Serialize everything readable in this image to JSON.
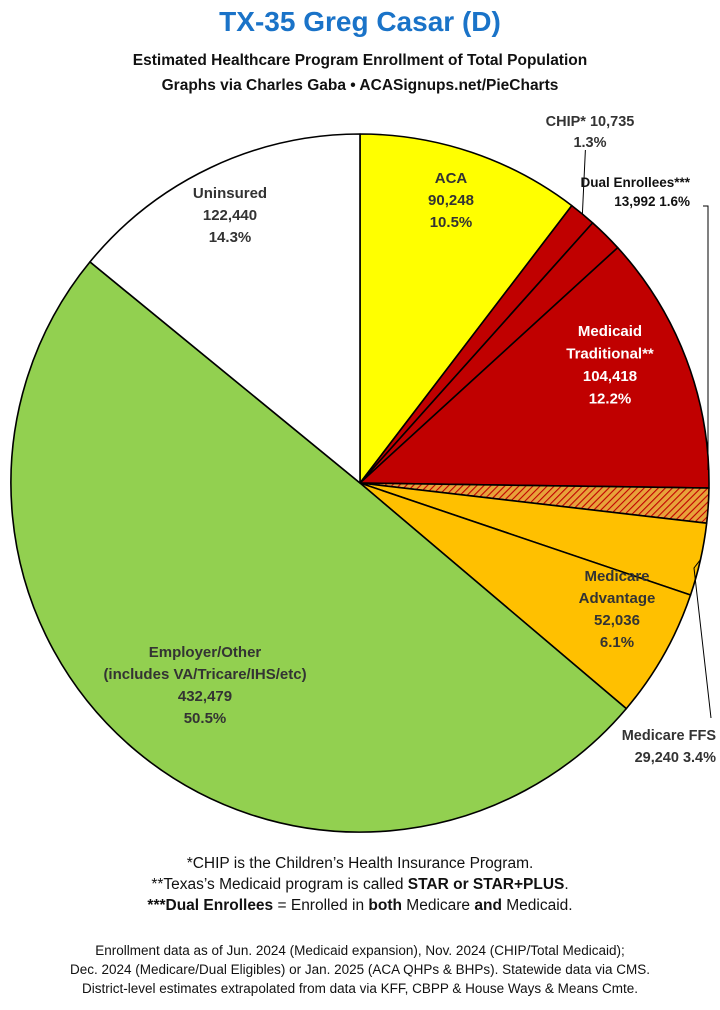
{
  "header": {
    "title": "TX-35 Greg Casar (D)",
    "subtitle_1": "Estimated Healthcare Program Enrollment of Total Population",
    "subtitle_2": "Graphs via Charles Gaba  •  ACASignups.net/PieCharts"
  },
  "chart_data": {
    "type": "pie",
    "title": "TX-35 Greg Casar (D)",
    "start_angle_deg": 0,
    "direction": "clockwise",
    "slices": [
      {
        "label": "ACA",
        "value": 90248,
        "percent": "10.5%",
        "value_text": "90,248",
        "color": "#ffff00",
        "label_pos": "inside"
      },
      {
        "label": "CHIP*",
        "value": 10735,
        "percent": "1.3%",
        "value_text": "10,735",
        "color": "#c00000",
        "label_pos": "outside"
      },
      {
        "label": "Dual Enrollees***",
        "value": 13992,
        "percent": "1.6%",
        "value_text": "13,992",
        "color": "#c00000",
        "label_pos": "outside"
      },
      {
        "label": "Medicaid Traditional**",
        "value": 104418,
        "percent": "12.2%",
        "value_text": "104,418",
        "color": "#c00000",
        "label_pos": "inside"
      },
      {
        "label": "Dual Enrollees (hatched)",
        "value": 13992,
        "percent": "1.6%",
        "value_text": "",
        "color": "#e8a23a",
        "hatch": true,
        "label_pos": "none"
      },
      {
        "label": "Medicare FFS",
        "value": 29240,
        "percent": "3.4%",
        "value_text": "29,240",
        "color": "#ffc000",
        "label_pos": "outside"
      },
      {
        "label": "Medicare Advantage",
        "value": 52036,
        "percent": "6.1%",
        "value_text": "52,036",
        "color": "#ffc000",
        "label_pos": "inside"
      },
      {
        "label": "Employer/Other (includes VA/Tricare/IHS/etc)",
        "value": 432479,
        "percent": "50.5%",
        "value_text": "432,479",
        "color": "#92d050",
        "label_pos": "inside"
      },
      {
        "label": "Uninsured",
        "value": 122440,
        "percent": "14.3%",
        "value_text": "122,440",
        "color": "#ffffff",
        "label_pos": "inside"
      }
    ],
    "labels": {
      "aca": [
        "ACA",
        "90,248",
        "10.5%"
      ],
      "chip": [
        "CHIP* 10,735",
        "1.3%"
      ],
      "dual": [
        "Dual Enrollees***",
        "13,992 1.6%"
      ],
      "medicaid": [
        "Medicaid",
        "Traditional**",
        "104,418",
        "12.2%"
      ],
      "medicare_adv": [
        "Medicare",
        "Advantage",
        "52,036",
        "6.1%"
      ],
      "medicare_ffs": [
        "Medicare FFS",
        "29,240 3.4%"
      ],
      "employer": [
        "Employer/Other",
        "(includes VA/Tricare/IHS/etc)",
        "432,479",
        "50.5%"
      ],
      "uninsured": [
        "Uninsured",
        "122,440",
        "14.3%"
      ]
    }
  },
  "footnotes": {
    "chip_a": "*CHIP is the Children’s Health Insurance Program.",
    "medicaid_a": "**Texas’s Medicaid program is called ",
    "medicaid_b": "STAR or STAR+PLUS",
    "medicaid_c": ".",
    "dual_a": "***Dual Enrollees",
    "dual_b": " = Enrolled in ",
    "dual_c": "both",
    "dual_d": " Medicare ",
    "dual_e": "and",
    "dual_f": " Medicaid."
  },
  "source": {
    "line_1": "Enrollment data as of Jun. 2024 (Medicaid expansion), Nov. 2024 (CHIP/Total Medicaid);",
    "line_2": "Dec. 2024 (Medicare/Dual Eligibles) or Jan. 2025 (ACA QHPs & BHPs). Statewide data via CMS.",
    "line_3": "District-level estimates extrapolated from data via KFF, CBPP & House Ways & Means Cmte."
  }
}
